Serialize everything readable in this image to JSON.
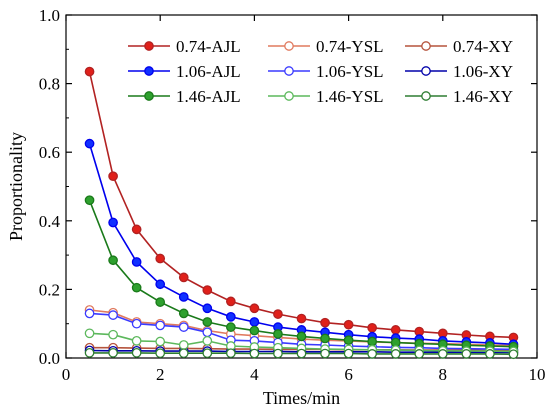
{
  "chart_data": {
    "type": "line",
    "title": "",
    "xlabel": "Times/min",
    "ylabel": "Proportionality",
    "xlim": [
      0,
      10
    ],
    "ylim": [
      0,
      1.0
    ],
    "x_ticks": [
      0,
      2,
      4,
      6,
      8,
      10
    ],
    "y_ticks": [
      0.0,
      0.2,
      0.4,
      0.6,
      0.8,
      1.0
    ],
    "x_tick_labels": [
      "0",
      "2",
      "4",
      "6",
      "8",
      "10"
    ],
    "y_tick_labels": [
      "0.0",
      "0.2",
      "0.4",
      "0.6",
      "0.8",
      "1.0"
    ],
    "grid": false,
    "legend_position": "top-right",
    "x": [
      0.5,
      1.0,
      1.5,
      2.0,
      2.5,
      3.0,
      3.5,
      4.0,
      4.5,
      5.0,
      5.5,
      6.0,
      6.5,
      7.0,
      7.5,
      8.0,
      8.5,
      9.0,
      9.5
    ],
    "series": [
      {
        "name": "0.74-AJL",
        "color": "#b22222",
        "fill": "#e0201a",
        "marker": "filled-circle",
        "values": [
          0.835,
          0.53,
          0.375,
          0.29,
          0.235,
          0.198,
          0.165,
          0.145,
          0.128,
          0.115,
          0.103,
          0.097,
          0.088,
          0.082,
          0.077,
          0.072,
          0.067,
          0.063,
          0.06
        ]
      },
      {
        "name": "0.74-YSL",
        "color": "#e07a5f",
        "fill": "#ffffff",
        "marker": "open-circle",
        "values": [
          0.14,
          0.132,
          0.105,
          0.1,
          0.095,
          0.08,
          0.07,
          0.065,
          0.06,
          0.055,
          0.052,
          0.05,
          0.047,
          0.045,
          0.043,
          0.042,
          0.04,
          0.038,
          0.036
        ]
      },
      {
        "name": "0.74-XY",
        "color": "#b5533c",
        "fill": "#ffffff",
        "marker": "open-circle",
        "values": [
          0.03,
          0.03,
          0.029,
          0.028,
          0.028,
          0.027,
          0.026,
          0.026,
          0.025,
          0.025,
          0.025,
          0.024,
          0.024,
          0.024,
          0.023,
          0.023,
          0.023,
          0.022,
          0.022
        ]
      },
      {
        "name": "1.06-AJL",
        "color": "#0000ee",
        "fill": "#1030ff",
        "marker": "filled-circle",
        "values": [
          0.625,
          0.395,
          0.28,
          0.215,
          0.178,
          0.145,
          0.12,
          0.105,
          0.09,
          0.082,
          0.075,
          0.068,
          0.062,
          0.058,
          0.055,
          0.05,
          0.047,
          0.044,
          0.04
        ]
      },
      {
        "name": "1.06-YSL",
        "color": "#3a3aff",
        "fill": "#ffffff",
        "marker": "open-circle",
        "values": [
          0.13,
          0.125,
          0.1,
          0.095,
          0.09,
          0.075,
          0.052,
          0.05,
          0.045,
          0.04,
          0.038,
          0.035,
          0.033,
          0.031,
          0.03,
          0.028,
          0.027,
          0.026,
          0.025
        ]
      },
      {
        "name": "1.06-XY",
        "color": "#0000aa",
        "fill": "#ffffff",
        "marker": "open-circle",
        "values": [
          0.022,
          0.021,
          0.021,
          0.02,
          0.02,
          0.02,
          0.019,
          0.019,
          0.019,
          0.018,
          0.018,
          0.018,
          0.018,
          0.017,
          0.017,
          0.017,
          0.017,
          0.016,
          0.016
        ]
      },
      {
        "name": "1.46-AJL",
        "color": "#1a7a1a",
        "fill": "#2ea02e",
        "marker": "filled-circle",
        "values": [
          0.46,
          0.285,
          0.205,
          0.163,
          0.13,
          0.105,
          0.09,
          0.08,
          0.07,
          0.063,
          0.057,
          0.052,
          0.048,
          0.045,
          0.042,
          0.04,
          0.037,
          0.035,
          0.033
        ]
      },
      {
        "name": "1.46-YSL",
        "color": "#5cb85c",
        "fill": "#ffffff",
        "marker": "open-circle",
        "values": [
          0.072,
          0.068,
          0.05,
          0.048,
          0.038,
          0.05,
          0.035,
          0.032,
          0.03,
          0.028,
          0.026,
          0.025,
          0.024,
          0.023,
          0.022,
          0.021,
          0.02,
          0.02,
          0.019
        ]
      },
      {
        "name": "1.46-XY",
        "color": "#2e7d32",
        "fill": "#ffffff",
        "marker": "open-circle",
        "values": [
          0.015,
          0.015,
          0.015,
          0.014,
          0.014,
          0.014,
          0.014,
          0.013,
          0.013,
          0.013,
          0.013,
          0.013,
          0.012,
          0.012,
          0.012,
          0.012,
          0.012,
          0.012,
          0.011
        ]
      }
    ]
  }
}
